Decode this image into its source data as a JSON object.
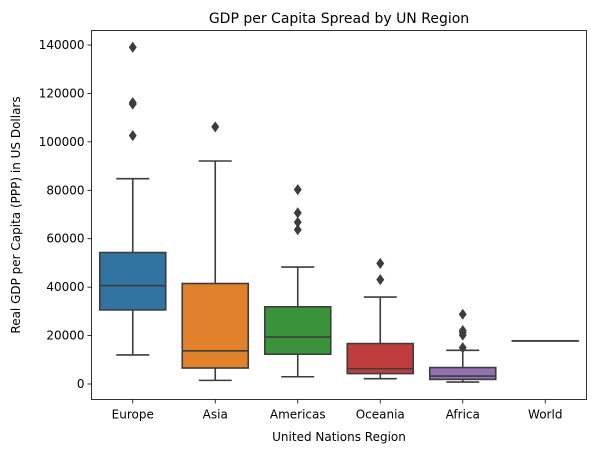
{
  "chart_data": {
    "type": "box",
    "title": "GDP per Capita Spread by UN Region",
    "xlabel": "United Nations Region",
    "ylabel": "Real GDP per Capita (PPP) in US Dollars",
    "categories": [
      "Europe",
      "Asia",
      "Americas",
      "Oceania",
      "Africa",
      "World"
    ],
    "yticks": [
      0,
      20000,
      40000,
      60000,
      80000,
      100000,
      120000,
      140000
    ],
    "ylim": [
      -6400,
      146000
    ],
    "grid": false,
    "boxes": [
      {
        "category": "Europe",
        "color": "#3274a1",
        "whisker_low": 12000,
        "q1": 30600,
        "median": 40600,
        "q3": 54300,
        "whisker_high": 84800,
        "outliers": [
          102600,
          115600,
          116200,
          139100
        ]
      },
      {
        "category": "Asia",
        "color": "#e1812c",
        "whisker_low": 1500,
        "q1": 6600,
        "median": 13700,
        "q3": 41500,
        "whisker_high": 92100,
        "outliers": [
          106200
        ]
      },
      {
        "category": "Americas",
        "color": "#3a923a",
        "whisker_low": 3000,
        "q1": 12300,
        "median": 19400,
        "q3": 31900,
        "whisker_high": 48300,
        "outliers": [
          63700,
          66800,
          70700,
          80300
        ]
      },
      {
        "category": "Oceania",
        "color": "#c03d3e",
        "whisker_low": 2200,
        "q1": 4300,
        "median": 6300,
        "q3": 16700,
        "whisker_high": 35900,
        "outliers": [
          43100,
          49800
        ]
      },
      {
        "category": "Africa",
        "color": "#9372b2",
        "whisker_low": 800,
        "q1": 1900,
        "median": 3300,
        "q3": 6800,
        "whisker_high": 13900,
        "outliers": [
          15000,
          20200,
          21300,
          22100,
          28800
        ]
      },
      {
        "category": "World",
        "color": "#845b53",
        "whisker_low": 17800,
        "q1": 17800,
        "median": 17800,
        "q3": 17800,
        "whisker_high": 17800,
        "outliers": []
      }
    ]
  }
}
